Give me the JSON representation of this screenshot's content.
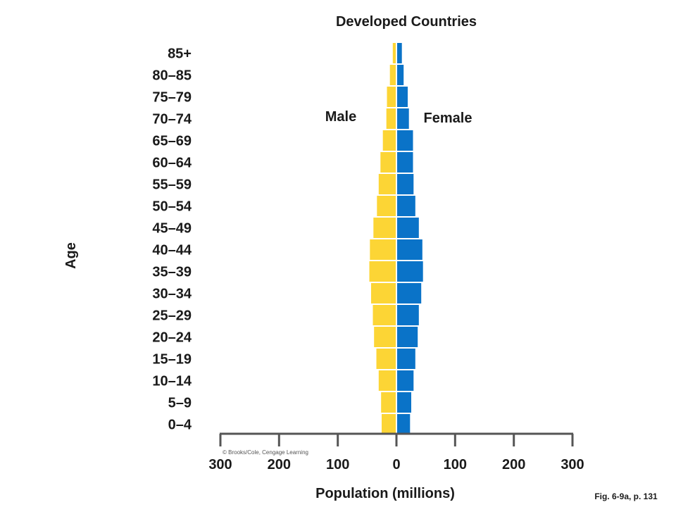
{
  "chart_data": {
    "type": "bar",
    "title": "Developed Countries",
    "xlabel": "Population (millions)",
    "ylabel": "Age",
    "xlim": [
      -300,
      300
    ],
    "x_ticks": [
      -300,
      -200,
      -100,
      0,
      100,
      200,
      300
    ],
    "x_tick_labels": [
      "300",
      "200",
      "100",
      "0",
      "100",
      "200",
      "300"
    ],
    "categories": [
      "0–4",
      "5–9",
      "10–14",
      "15–19",
      "20–24",
      "25–29",
      "30–34",
      "35–39",
      "40–44",
      "45–49",
      "50–54",
      "55–59",
      "60–64",
      "65–69",
      "70–74",
      "75–79",
      "80–85",
      "85+"
    ],
    "series": [
      {
        "name": "Male",
        "color": "#FCD535",
        "values": [
          24,
          25,
          29,
          33,
          37,
          39,
          42,
          45,
          44,
          38,
          32,
          29,
          26,
          22,
          16,
          15,
          10,
          5
        ]
      },
      {
        "name": "Female",
        "color": "#0A73C8",
        "values": [
          22,
          24,
          28,
          31,
          35,
          37,
          41,
          44,
          43,
          37,
          31,
          28,
          27,
          27,
          20,
          18,
          11,
          8
        ]
      }
    ],
    "legend": [
      "Male",
      "Female"
    ],
    "credit": "© Brooks/Cole, Cengage Learning",
    "caption": "Fig. 6-9a, p. 131"
  }
}
